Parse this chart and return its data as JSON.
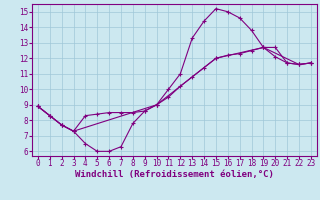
{
  "background_color": "#cce8f0",
  "grid_color": "#a0c8d8",
  "line_color": "#800080",
  "marker": "+",
  "markersize": 3,
  "linewidth": 0.8,
  "xlabel": "Windchill (Refroidissement éolien,°C)",
  "xlabel_fontsize": 6.5,
  "tick_fontsize": 5.5,
  "xlim": [
    -0.5,
    23.5
  ],
  "ylim": [
    5.7,
    15.5
  ],
  "yticks": [
    6,
    7,
    8,
    9,
    10,
    11,
    12,
    13,
    14,
    15
  ],
  "xticks": [
    0,
    1,
    2,
    3,
    4,
    5,
    6,
    7,
    8,
    9,
    10,
    11,
    12,
    13,
    14,
    15,
    16,
    17,
    18,
    19,
    20,
    21,
    22,
    23
  ],
  "line1_x": [
    0,
    1,
    2,
    3,
    4,
    5,
    6,
    7,
    8,
    9,
    10,
    11,
    12,
    13,
    14,
    15,
    16,
    17,
    18,
    19,
    20,
    21,
    22,
    23
  ],
  "line1_y": [
    8.9,
    8.3,
    7.7,
    7.3,
    6.5,
    6.0,
    6.0,
    6.3,
    7.8,
    8.6,
    9.0,
    10.0,
    11.0,
    13.3,
    14.4,
    15.2,
    15.0,
    14.6,
    13.8,
    12.7,
    12.1,
    11.7,
    11.6,
    11.7
  ],
  "line2_x": [
    0,
    1,
    2,
    3,
    4,
    5,
    6,
    7,
    8,
    9,
    10,
    11,
    12,
    13,
    14,
    15,
    16,
    17,
    18,
    19,
    20,
    21,
    22,
    23
  ],
  "line2_y": [
    8.9,
    8.3,
    7.7,
    7.3,
    8.3,
    8.4,
    8.5,
    8.5,
    8.5,
    8.6,
    9.0,
    9.5,
    10.2,
    10.8,
    11.4,
    12.0,
    12.2,
    12.3,
    12.5,
    12.7,
    12.7,
    11.7,
    11.6,
    11.7
  ],
  "line3_x": [
    0,
    1,
    2,
    3,
    10,
    15,
    19,
    22,
    23
  ],
  "line3_y": [
    8.9,
    8.3,
    7.7,
    7.3,
    9.0,
    12.0,
    12.7,
    11.6,
    11.7
  ]
}
